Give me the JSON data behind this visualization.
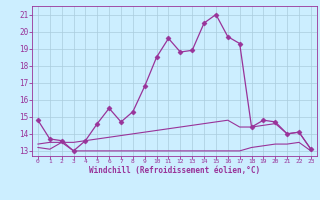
{
  "xlabel": "Windchill (Refroidissement éolien,°C)",
  "bg_color": "#cceeff",
  "grid_color": "#aaccdd",
  "line_color": "#993399",
  "xlim": [
    -0.5,
    23.5
  ],
  "ylim": [
    12.7,
    21.5
  ],
  "xticks": [
    0,
    1,
    2,
    3,
    4,
    5,
    6,
    7,
    8,
    9,
    10,
    11,
    12,
    13,
    14,
    15,
    16,
    17,
    18,
    19,
    20,
    21,
    22,
    23
  ],
  "yticks": [
    13,
    14,
    15,
    16,
    17,
    18,
    19,
    20,
    21
  ],
  "line1_x": [
    0,
    1,
    2,
    3,
    4,
    5,
    6,
    7,
    8,
    9,
    10,
    11,
    12,
    13,
    14,
    15,
    16,
    17,
    18,
    19,
    20,
    21,
    22,
    23
  ],
  "line1_y": [
    14.8,
    13.7,
    13.6,
    13.0,
    13.6,
    14.6,
    15.5,
    14.7,
    15.3,
    16.8,
    18.5,
    19.6,
    18.8,
    18.9,
    20.5,
    21.0,
    19.7,
    19.3,
    14.4,
    14.8,
    14.7,
    14.0,
    14.1,
    13.1
  ],
  "line2_x": [
    0,
    1,
    2,
    3,
    4,
    5,
    6,
    7,
    8,
    9,
    10,
    11,
    12,
    13,
    14,
    15,
    16,
    17,
    18,
    19,
    20,
    21,
    22,
    23
  ],
  "line2_y": [
    13.2,
    13.1,
    13.5,
    13.0,
    13.0,
    13.0,
    13.0,
    13.0,
    13.0,
    13.0,
    13.0,
    13.0,
    13.0,
    13.0,
    13.0,
    13.0,
    13.0,
    13.0,
    13.2,
    13.3,
    13.4,
    13.4,
    13.5,
    13.0
  ],
  "line3_x": [
    0,
    1,
    2,
    3,
    4,
    5,
    6,
    7,
    8,
    9,
    10,
    11,
    12,
    13,
    14,
    15,
    16,
    17,
    18,
    19,
    20,
    21,
    22,
    23
  ],
  "line3_y": [
    13.4,
    13.5,
    13.5,
    13.5,
    13.6,
    13.7,
    13.8,
    13.9,
    14.0,
    14.1,
    14.2,
    14.3,
    14.4,
    14.5,
    14.6,
    14.7,
    14.8,
    14.4,
    14.4,
    14.5,
    14.6,
    14.0,
    14.1,
    13.1
  ]
}
